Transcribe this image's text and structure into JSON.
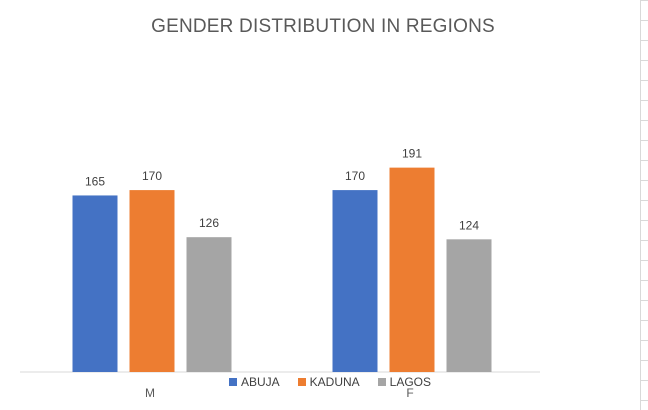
{
  "chart_data": {
    "type": "bar",
    "title": "GENDER DISTRIBUTION IN REGIONS",
    "categories": [
      "M",
      "F"
    ],
    "series": [
      {
        "name": "ABUJA",
        "values": [
          165,
          170
        ],
        "color": "#4472C4"
      },
      {
        "name": "KADUNA",
        "values": [
          170,
          191
        ],
        "color": "#ED7D31"
      },
      {
        "name": "LAGOS",
        "values": [
          126,
          124
        ],
        "color": "#A5A5A5"
      }
    ],
    "xlabel": "",
    "ylabel": "",
    "ylim": [
      0,
      250
    ],
    "grid": false,
    "data_labels": true,
    "legend_position": "bottom"
  }
}
